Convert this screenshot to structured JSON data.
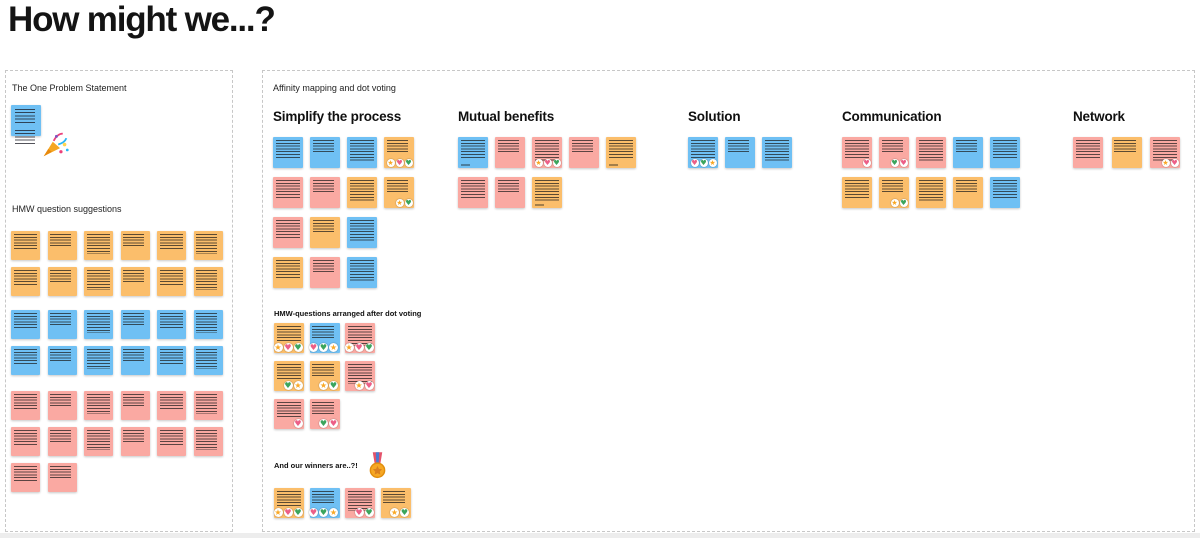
{
  "page": {
    "title": "How might we...?"
  },
  "colors": {
    "orange": "#FBBE6B",
    "blue": "#6FC0F4",
    "pink": "#FAA9A2",
    "panel_border": "#C7C7C7",
    "title_text": "#141414"
  },
  "badge_styles": {
    "star": {
      "glyph": "★",
      "fg": "#F9A825",
      "bg": "#FFFFFF"
    },
    "heart": {
      "glyph": "♥",
      "fg": "#EC5F87",
      "bg": "#FFFFFF"
    },
    "green": {
      "glyph": "♥",
      "fg": "#3BA55D",
      "bg": "#FFFFFF"
    }
  },
  "icons": {
    "problem_note_icon": "party-popper",
    "winners_icon": "sports-medal"
  },
  "left_panel": {
    "label": "The One Problem Statement",
    "suggestions_label": "HMW question suggestions",
    "problem_note": {
      "color": "blue",
      "icon": "party-popper"
    },
    "blocks": [
      {
        "color": "orange",
        "rows": [
          6,
          6
        ]
      },
      {
        "color": "blue",
        "rows": [
          6,
          6
        ]
      },
      {
        "color": "pink",
        "rows": [
          6,
          6,
          2
        ]
      }
    ]
  },
  "right_panel": {
    "label": "Affinity mapping and dot voting",
    "groups": [
      {
        "title": "Simplify the process",
        "rows": [
          [
            {
              "c": "blue"
            },
            {
              "c": "blue"
            },
            {
              "c": "blue"
            },
            {
              "c": "orange",
              "b": [
                "star",
                "heart",
                "green"
              ]
            }
          ],
          [
            {
              "c": "pink"
            },
            {
              "c": "pink"
            },
            {
              "c": "orange"
            },
            {
              "c": "orange",
              "b": [
                "star",
                "green"
              ]
            }
          ],
          [
            {
              "c": "pink"
            },
            {
              "c": "orange"
            },
            {
              "c": "blue"
            }
          ],
          [
            {
              "c": "orange"
            },
            {
              "c": "pink"
            },
            {
              "c": "blue"
            }
          ]
        ]
      },
      {
        "title": "Mutual benefits",
        "rows": [
          [
            {
              "c": "blue",
              "a": 1
            },
            {
              "c": "pink"
            },
            {
              "c": "pink",
              "b": [
                "star",
                "heart",
                "green"
              ]
            },
            {
              "c": "pink"
            },
            {
              "c": "orange",
              "a": 1
            }
          ],
          [
            {
              "c": "pink"
            },
            {
              "c": "pink"
            },
            {
              "c": "orange",
              "a": 1
            }
          ]
        ]
      },
      {
        "title": "Solution",
        "rows": [
          [
            {
              "c": "blue",
              "b": [
                "heart",
                "green",
                "star"
              ]
            },
            {
              "c": "blue"
            },
            {
              "c": "blue"
            }
          ]
        ]
      },
      {
        "title": "Communication",
        "rows": [
          [
            {
              "c": "pink",
              "b": [
                "heart"
              ]
            },
            {
              "c": "pink",
              "b": [
                "green",
                "heart"
              ]
            },
            {
              "c": "pink"
            },
            {
              "c": "blue"
            },
            {
              "c": "blue"
            }
          ],
          [
            {
              "c": "orange"
            },
            {
              "c": "orange",
              "b": [
                "star",
                "green"
              ]
            },
            {
              "c": "orange"
            },
            {
              "c": "orange"
            },
            {
              "c": "blue"
            }
          ]
        ]
      },
      {
        "title": "Network",
        "rows": [
          [
            {
              "c": "pink"
            },
            {
              "c": "orange"
            },
            {
              "c": "pink",
              "b": [
                "star",
                "heart"
              ]
            }
          ]
        ]
      }
    ],
    "arranged": {
      "label": "HMW-questions arranged after dot voting",
      "rows": [
        [
          {
            "c": "orange",
            "b": [
              "star",
              "heart",
              "green"
            ]
          },
          {
            "c": "blue",
            "b": [
              "heart",
              "green",
              "star"
            ]
          },
          {
            "c": "pink",
            "b": [
              "star",
              "heart",
              "green"
            ]
          }
        ],
        [
          {
            "c": "orange",
            "b": [
              "green",
              "star"
            ]
          },
          {
            "c": "orange",
            "b": [
              "star",
              "green"
            ]
          },
          {
            "c": "pink",
            "b": [
              "star",
              "heart"
            ]
          }
        ],
        [
          {
            "c": "pink",
            "b": [
              "heart"
            ]
          },
          {
            "c": "pink",
            "b": [
              "green",
              "heart"
            ]
          }
        ]
      ]
    },
    "winners": {
      "label": "And our winners are..?!",
      "icon": "sports-medal",
      "row": [
        {
          "c": "orange",
          "b": [
            "star",
            "heart",
            "green"
          ]
        },
        {
          "c": "blue",
          "b": [
            "heart",
            "green",
            "star"
          ]
        },
        {
          "c": "pink",
          "b": [
            "heart",
            "green"
          ]
        },
        {
          "c": "orange",
          "b": [
            "star",
            "green"
          ]
        }
      ]
    }
  }
}
